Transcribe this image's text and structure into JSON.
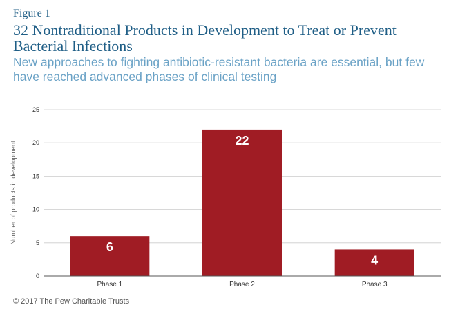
{
  "figure_label": "Figure 1",
  "title": "32 Nontraditional Products in Development to Treat or Prevent Bacterial Infections",
  "subtitle": "New approaches to fighting antibiotic-resistant bacteria are essential, but few have reached advanced phases of clinical testing",
  "footer": "© 2017 The Pew Charitable Trusts",
  "colors": {
    "bar": "#a01c24",
    "grid": "#cccccc",
    "axis": "#555555"
  },
  "chart_data": {
    "type": "bar",
    "categories": [
      "Phase 1",
      "Phase 2",
      "Phase 3"
    ],
    "values": [
      6,
      22,
      4
    ],
    "data_labels": [
      "6",
      "22",
      "4"
    ],
    "ylabel": "Number of products in development",
    "xlabel": "",
    "ylim": [
      0,
      25
    ],
    "yticks": [
      "0",
      "5",
      "10",
      "15",
      "20",
      "25"
    ],
    "grid": true
  }
}
